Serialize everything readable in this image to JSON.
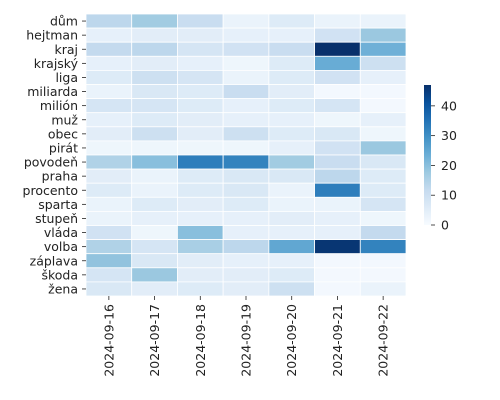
{
  "chart_data": {
    "type": "heatmap",
    "title": "",
    "xlabel": "",
    "ylabel": "",
    "x_categories": [
      "2024-09-16",
      "2024-09-17",
      "2024-09-18",
      "2024-09-19",
      "2024-09-20",
      "2024-09-21",
      "2024-09-22"
    ],
    "y_categories": [
      "dům",
      "hejtman",
      "kraj",
      "krajský",
      "liga",
      "miliarda",
      "milión",
      "muž",
      "obec",
      "pirát",
      "povodeň",
      "praha",
      "procento",
      "sparta",
      "stupeň",
      "vláda",
      "volba",
      "záplava",
      "škoda",
      "žena"
    ],
    "values": [
      [
        13,
        17,
        11,
        3,
        6,
        3,
        3
      ],
      [
        4,
        5,
        5,
        4,
        4,
        9,
        18
      ],
      [
        12,
        13,
        8,
        9,
        11,
        47,
        23
      ],
      [
        4,
        5,
        4,
        2,
        6,
        24,
        10
      ],
      [
        6,
        10,
        8,
        3,
        6,
        9,
        4
      ],
      [
        3,
        7,
        6,
        11,
        5,
        1,
        1
      ],
      [
        8,
        8,
        6,
        4,
        6,
        8,
        1
      ],
      [
        4,
        6,
        5,
        4,
        4,
        2,
        4
      ],
      [
        5,
        10,
        5,
        10,
        6,
        7,
        2
      ],
      [
        2,
        2,
        2,
        2,
        4,
        9,
        18
      ],
      [
        15,
        20,
        33,
        32,
        17,
        11,
        7
      ],
      [
        5,
        3,
        6,
        7,
        7,
        13,
        6
      ],
      [
        6,
        3,
        6,
        7,
        3,
        33,
        6
      ],
      [
        3,
        6,
        5,
        6,
        3,
        3,
        8
      ],
      [
        3,
        4,
        4,
        4,
        5,
        4,
        2
      ],
      [
        9,
        2,
        20,
        4,
        4,
        4,
        12
      ],
      [
        15,
        8,
        16,
        13,
        25,
        46,
        32
      ],
      [
        19,
        7,
        5,
        4,
        4,
        1,
        1
      ],
      [
        8,
        18,
        5,
        5,
        6,
        1,
        1
      ],
      [
        7,
        5,
        6,
        5,
        10,
        1,
        3
      ]
    ],
    "colorbar": {
      "min": 0,
      "max": 47,
      "ticks": [
        0,
        10,
        20,
        30,
        40
      ],
      "colormap": "Blues"
    },
    "grid": "white cell separators"
  }
}
